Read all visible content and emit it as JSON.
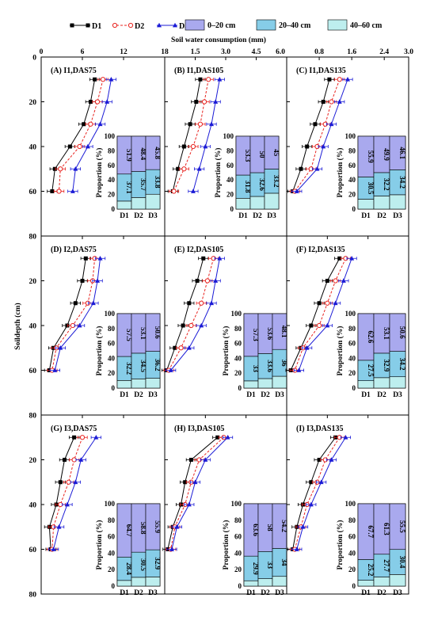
{
  "colors": {
    "D1": "#000000",
    "D2": "#e8231f",
    "D3": "#1b1bd6",
    "layer_0_20": "#a9a9ee",
    "layer_20_40": "#86cde8",
    "layer_40_60": "#bdeeee",
    "inset_bg": "#dcdcf4"
  },
  "chart_data": {
    "type": "line",
    "title": "",
    "xlabel": "Soil water consumption (mm)",
    "ylabel": "Soildepth (cm)",
    "ylim": [
      0,
      80
    ],
    "y_ticks": [
      "0",
      "20",
      "40",
      "60",
      "80"
    ],
    "column_ticks": [
      [
        "0",
        "6",
        "12",
        "18"
      ],
      [
        "1.5",
        "3.0",
        "4.5",
        "6.0"
      ],
      [
        "0.8",
        "1.6",
        "2.4",
        "3.0"
      ]
    ],
    "legend": {
      "series": [
        "D1",
        "D2",
        "D3"
      ],
      "layers": [
        "0–20 cm",
        "20–40 cm",
        "40–60 cm"
      ],
      "placement": "top"
    },
    "inset": {
      "ylabel": "Proportion (%)",
      "y_ticks": [
        "0",
        "20",
        "40",
        "60",
        "80",
        "100"
      ],
      "categories": [
        "D1",
        "D2",
        "D3"
      ]
    },
    "depths": [
      10,
      20,
      30,
      40,
      50,
      60
    ],
    "panels": [
      {
        "label": "(A) I1,DAS75",
        "xlim": [
          0,
          18
        ],
        "series": [
          {
            "name": "D1",
            "x": [
              7.8,
              7.2,
              6.2,
              4.2,
              2.0,
              1.6
            ]
          },
          {
            "name": "D2",
            "x": [
              9.0,
              8.2,
              7.2,
              5.6,
              2.8,
              2.6
            ]
          },
          {
            "name": "D3",
            "x": [
              10.2,
              9.6,
              8.6,
              6.8,
              5.0,
              4.6
            ]
          }
        ],
        "proportion": {
          "l0_20": [
            51.9,
            48.4,
            45.8
          ],
          "l20_40": [
            37.1,
            35.7,
            33.8
          ]
        }
      },
      {
        "label": "(B) I1,DAS105",
        "xlim": [
          0,
          6
        ],
        "series": [
          {
            "name": "D1",
            "x": [
              1.75,
              1.55,
              1.25,
              0.95,
              0.65,
              0.4
            ]
          },
          {
            "name": "D2",
            "x": [
              2.15,
              1.95,
              1.75,
              1.4,
              0.95,
              0.45
            ]
          },
          {
            "name": "D3",
            "x": [
              2.7,
              2.5,
              2.3,
              2.0,
              1.7,
              1.4
            ]
          }
        ],
        "proportion": {
          "l0_20": [
            53.3,
            50.0,
            45.0
          ],
          "l20_40": [
            31.8,
            32.6,
            33.2
          ]
        }
      },
      {
        "label": "(C) I1,DAS135",
        "xlim": [
          0,
          3
        ],
        "series": [
          {
            "name": "D1",
            "x": [
              1.05,
              0.9,
              0.7,
              0.5,
              0.35,
              0.15
            ]
          },
          {
            "name": "D2",
            "x": [
              1.3,
              1.1,
              0.95,
              0.75,
              0.6,
              0.2
            ]
          },
          {
            "name": "D3",
            "x": [
              1.5,
              1.3,
              1.1,
              0.9,
              0.75,
              0.25
            ]
          }
        ],
        "proportion": {
          "l0_20": [
            55.9,
            49.9,
            46.1
          ],
          "l20_40": [
            30.5,
            32.2,
            34.2
          ]
        }
      },
      {
        "label": "(D) I2,DAS75",
        "xlim": [
          0,
          18
        ],
        "series": [
          {
            "name": "D1",
            "x": [
              6.5,
              6.0,
              5.0,
              3.8,
              1.8,
              1.2
            ]
          },
          {
            "name": "D2",
            "x": [
              7.8,
              7.5,
              6.8,
              4.6,
              2.2,
              1.6
            ]
          },
          {
            "name": "D3",
            "x": [
              8.6,
              8.2,
              7.6,
              5.6,
              2.8,
              2.0
            ]
          }
        ],
        "proportion": {
          "l0_20": [
            57.5,
            53.1,
            50.6
          ],
          "l20_40": [
            32.2,
            34.5,
            36.2
          ]
        }
      },
      {
        "label": "(E) I2,DAS105",
        "xlim": [
          0,
          6
        ],
        "series": [
          {
            "name": "D1",
            "x": [
              1.9,
              1.6,
              1.2,
              0.9,
              0.5,
              0.1
            ]
          },
          {
            "name": "D2",
            "x": [
              2.4,
              2.1,
              1.8,
              1.3,
              0.8,
              0.2
            ]
          },
          {
            "name": "D3",
            "x": [
              2.7,
              2.5,
              2.3,
              1.8,
              1.2,
              0.3
            ]
          }
        ],
        "proportion": {
          "l0_20": [
            57.3,
            53.6,
            48.1
          ],
          "l20_40": [
            33.0,
            33.6,
            36.0
          ]
        }
      },
      {
        "label": "(F) I2,DAS135",
        "xlim": [
          0,
          3
        ],
        "series": [
          {
            "name": "D1",
            "x": [
              1.3,
              1.0,
              0.8,
              0.6,
              0.35,
              0.1
            ]
          },
          {
            "name": "D2",
            "x": [
              1.45,
              1.2,
              1.0,
              0.8,
              0.4,
              0.2
            ]
          },
          {
            "name": "D3",
            "x": [
              1.6,
              1.4,
              1.2,
              1.0,
              0.5,
              0.3
            ]
          }
        ],
        "proportion": {
          "l0_20": [
            62.6,
            53.1,
            50.6
          ],
          "l20_40": [
            27.5,
            32.9,
            34.2
          ]
        }
      },
      {
        "label": "(G) I3,DAS75",
        "xlim": [
          0,
          18
        ],
        "series": [
          {
            "name": "D1",
            "x": [
              4.8,
              3.4,
              2.8,
              2.2,
              1.2,
              1.4
            ]
          },
          {
            "name": "D2",
            "x": [
              6.0,
              4.8,
              4.0,
              2.8,
              1.8,
              1.6
            ]
          },
          {
            "name": "D3",
            "x": [
              8.0,
              5.8,
              5.0,
              3.8,
              2.6,
              1.8
            ]
          }
        ],
        "proportion": {
          "l0_20": [
            64.7,
            58.8,
            55.9
          ],
          "l20_40": [
            28.4,
            30.5,
            32.9
          ]
        }
      },
      {
        "label": "(H) I3,DAS105",
        "xlim": [
          0,
          6
        ],
        "series": [
          {
            "name": "D1",
            "x": [
              2.6,
              1.3,
              1.0,
              0.8,
              0.4,
              0.15
            ]
          },
          {
            "name": "D2",
            "x": [
              2.9,
              1.7,
              1.3,
              1.0,
              0.5,
              0.3
            ]
          },
          {
            "name": "D3",
            "x": [
              3.1,
              2.0,
              1.5,
              1.2,
              0.6,
              0.35
            ]
          }
        ],
        "proportion": {
          "l0_20": [
            63.6,
            58.0,
            54.2
          ],
          "l20_40": [
            29.9,
            33.0,
            34.0
          ]
        }
      },
      {
        "label": "(I) I3,DAS135",
        "xlim": [
          0,
          3
        ],
        "series": [
          {
            "name": "D1",
            "x": [
              1.2,
              0.8,
              0.6,
              0.4,
              0.25,
              0.15
            ]
          },
          {
            "name": "D2",
            "x": [
              1.3,
              0.95,
              0.75,
              0.5,
              0.35,
              0.2
            ]
          },
          {
            "name": "D3",
            "x": [
              1.45,
              1.1,
              0.85,
              0.6,
              0.4,
              0.25
            ]
          }
        ],
        "proportion": {
          "l0_20": [
            67.7,
            61.3,
            55.5
          ],
          "l20_40": [
            25.2,
            27.7,
            30.4
          ]
        }
      }
    ]
  }
}
